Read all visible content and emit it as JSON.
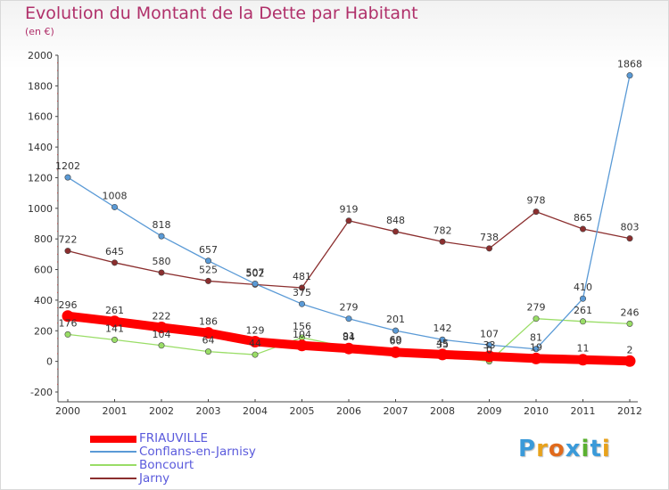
{
  "title": "Evolution du Montant de la Dette par Habitant",
  "subtitle": "(en €)",
  "logo": {
    "text": "Proxiti",
    "colors": [
      "#3a9ad9",
      "#e8a21c",
      "#e06a1c",
      "#3a9ad9",
      "#5ab030",
      "#3a9ad9",
      "#e8a21c"
    ]
  },
  "chart_data": {
    "type": "line",
    "x": [
      2000,
      2001,
      2002,
      2003,
      2004,
      2005,
      2006,
      2007,
      2008,
      2009,
      2010,
      2011,
      2012
    ],
    "ylim": [
      -200,
      2000
    ],
    "yticks": [
      -200,
      0,
      200,
      400,
      600,
      800,
      1000,
      1200,
      1400,
      1600,
      1800,
      2000
    ],
    "grid": false,
    "legend_position": "bottom-left",
    "series": [
      {
        "name": "FRIAUVILLE",
        "color": "#ff0000",
        "values": [
          296,
          261,
          222,
          186,
          129,
          104,
          84,
          60,
          45,
          33,
          19,
          11,
          2
        ],
        "labels": [
          "296",
          "261",
          "222",
          "186",
          "129",
          "104",
          "84",
          "60",
          "45",
          "33",
          "19",
          "11",
          "2"
        ]
      },
      {
        "name": "Conflans-en-Jarnisy",
        "color": "#5a9ad6",
        "values": [
          1202,
          1008,
          818,
          657,
          507,
          375,
          279,
          201,
          142,
          107,
          81,
          410,
          1868
        ],
        "labels": [
          "1202",
          "1008",
          "818",
          "657",
          "507",
          "375",
          "279",
          "201",
          "142",
          "107",
          "81",
          "410",
          "1868"
        ]
      },
      {
        "name": "Boncourt",
        "color": "#99dd66",
        "values": [
          176,
          141,
          104,
          64,
          44,
          156,
          91,
          69,
          35,
          0,
          279,
          261,
          246
        ],
        "labels": [
          "176",
          "141",
          "104",
          "64",
          "44",
          "156",
          "91",
          "69",
          "35",
          "0",
          "279",
          "261",
          "246"
        ]
      },
      {
        "name": "Jarny",
        "color": "#8b2e2e",
        "values": [
          722,
          645,
          580,
          525,
          502,
          481,
          919,
          848,
          782,
          738,
          978,
          865,
          803
        ],
        "labels": [
          "722",
          "645",
          "580",
          "525",
          "502",
          "481",
          "919",
          "848",
          "782",
          "738",
          "978",
          "865",
          "803"
        ]
      }
    ]
  }
}
